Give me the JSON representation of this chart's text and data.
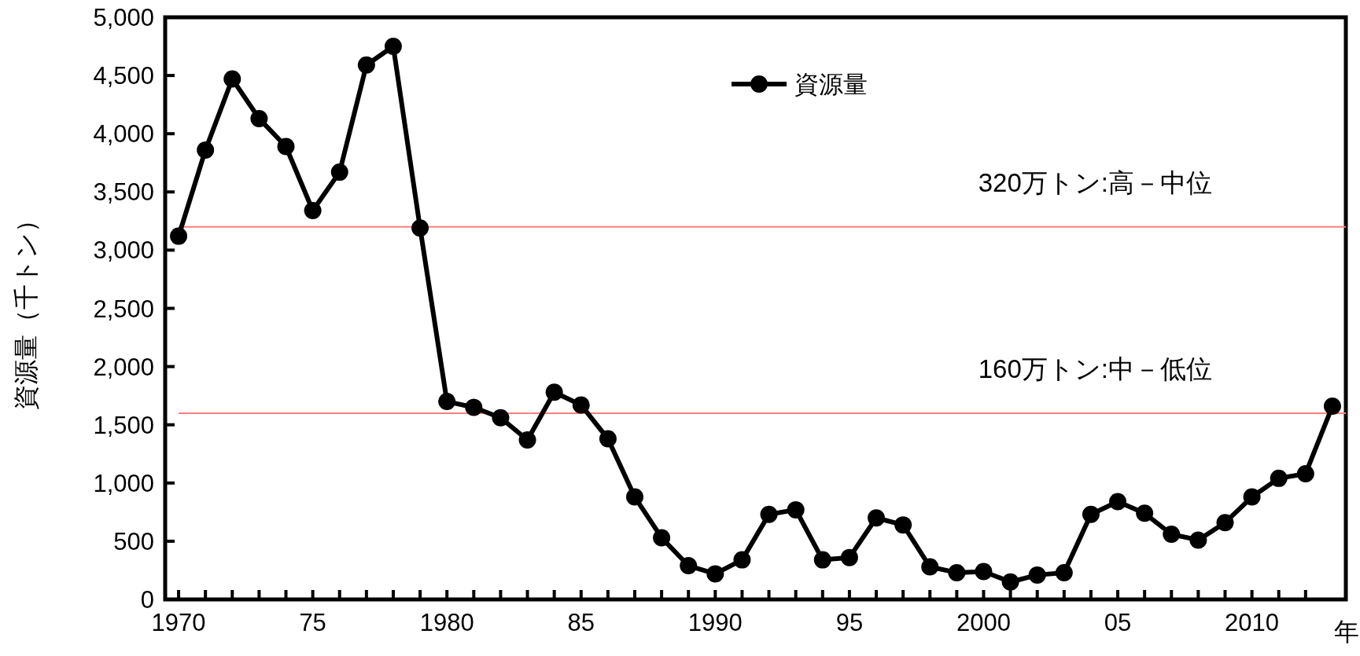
{
  "chart_data": {
    "type": "line",
    "ylabel": "資源量（千トン）",
    "xlabel": "年",
    "x": [
      1970,
      1971,
      1972,
      1973,
      1974,
      1975,
      1976,
      1977,
      1978,
      1979,
      1980,
      1981,
      1982,
      1983,
      1984,
      1985,
      1986,
      1987,
      1988,
      1989,
      1990,
      1991,
      1992,
      1993,
      1994,
      1995,
      1996,
      1997,
      1998,
      1999,
      2000,
      2001,
      2002,
      2003,
      2004,
      2005,
      2006,
      2007,
      2008,
      2009,
      2010,
      2011,
      2012,
      2013
    ],
    "series": [
      {
        "name": "資源量",
        "color": "#000000",
        "values": [
          3120,
          3860,
          4470,
          4130,
          3890,
          3340,
          3670,
          4590,
          4750,
          3190,
          1700,
          1650,
          1560,
          1370,
          1780,
          1670,
          1380,
          880,
          530,
          290,
          220,
          340,
          730,
          770,
          340,
          360,
          700,
          640,
          280,
          230,
          240,
          150,
          210,
          230,
          730,
          840,
          740,
          560,
          510,
          660,
          880,
          1040,
          1080,
          1660
        ]
      }
    ],
    "xlim": [
      1969.5,
      2013.5
    ],
    "xticks": [
      {
        "value": 1970,
        "label": "1970"
      },
      {
        "value": 1971,
        "label": null
      },
      {
        "value": 1972,
        "label": null
      },
      {
        "value": 1973,
        "label": null
      },
      {
        "value": 1974,
        "label": null
      },
      {
        "value": 1975,
        "label": "75"
      },
      {
        "value": 1976,
        "label": null
      },
      {
        "value": 1977,
        "label": null
      },
      {
        "value": 1978,
        "label": null
      },
      {
        "value": 1979,
        "label": null
      },
      {
        "value": 1980,
        "label": "1980"
      },
      {
        "value": 1981,
        "label": null
      },
      {
        "value": 1982,
        "label": null
      },
      {
        "value": 1983,
        "label": null
      },
      {
        "value": 1984,
        "label": null
      },
      {
        "value": 1985,
        "label": "85"
      },
      {
        "value": 1986,
        "label": null
      },
      {
        "value": 1987,
        "label": null
      },
      {
        "value": 1988,
        "label": null
      },
      {
        "value": 1989,
        "label": null
      },
      {
        "value": 1990,
        "label": "1990"
      },
      {
        "value": 1991,
        "label": null
      },
      {
        "value": 1992,
        "label": null
      },
      {
        "value": 1993,
        "label": null
      },
      {
        "value": 1994,
        "label": null
      },
      {
        "value": 1995,
        "label": "95"
      },
      {
        "value": 1996,
        "label": null
      },
      {
        "value": 1997,
        "label": null
      },
      {
        "value": 1998,
        "label": null
      },
      {
        "value": 1999,
        "label": null
      },
      {
        "value": 2000,
        "label": "2000"
      },
      {
        "value": 2001,
        "label": null
      },
      {
        "value": 2002,
        "label": null
      },
      {
        "value": 2003,
        "label": null
      },
      {
        "value": 2004,
        "label": null
      },
      {
        "value": 2005,
        "label": "05"
      },
      {
        "value": 2006,
        "label": null
      },
      {
        "value": 2007,
        "label": null
      },
      {
        "value": 2008,
        "label": null
      },
      {
        "value": 2009,
        "label": null
      },
      {
        "value": 2010,
        "label": "2010"
      },
      {
        "value": 2011,
        "label": null
      },
      {
        "value": 2012,
        "label": null
      }
    ],
    "ylim": [
      0,
      5000
    ],
    "yticks": [
      0,
      500,
      {
        "value": 1000,
        "label": "1,000"
      },
      {
        "value": 1500,
        "label": "1,500"
      },
      {
        "value": 2000,
        "label": "2,000"
      },
      {
        "value": 2500,
        "label": "2,500"
      },
      {
        "value": 3000,
        "label": "3,000"
      },
      {
        "value": 3500,
        "label": "3,500"
      },
      {
        "value": 4000,
        "label": "4,000"
      },
      {
        "value": 4500,
        "label": "4,500"
      },
      {
        "value": 5000,
        "label": "5,000"
      }
    ],
    "ref_lines": [
      {
        "axis": "y",
        "value": 3200,
        "label": "320万トン:高－中位",
        "color": "#ff7f7f"
      },
      {
        "axis": "y",
        "value": 1600,
        "label": "160万トン:中－低位",
        "color": "#ff7f7f"
      }
    ],
    "marker": "circle",
    "line_style": "solid",
    "legend": "top",
    "grid": false
  }
}
